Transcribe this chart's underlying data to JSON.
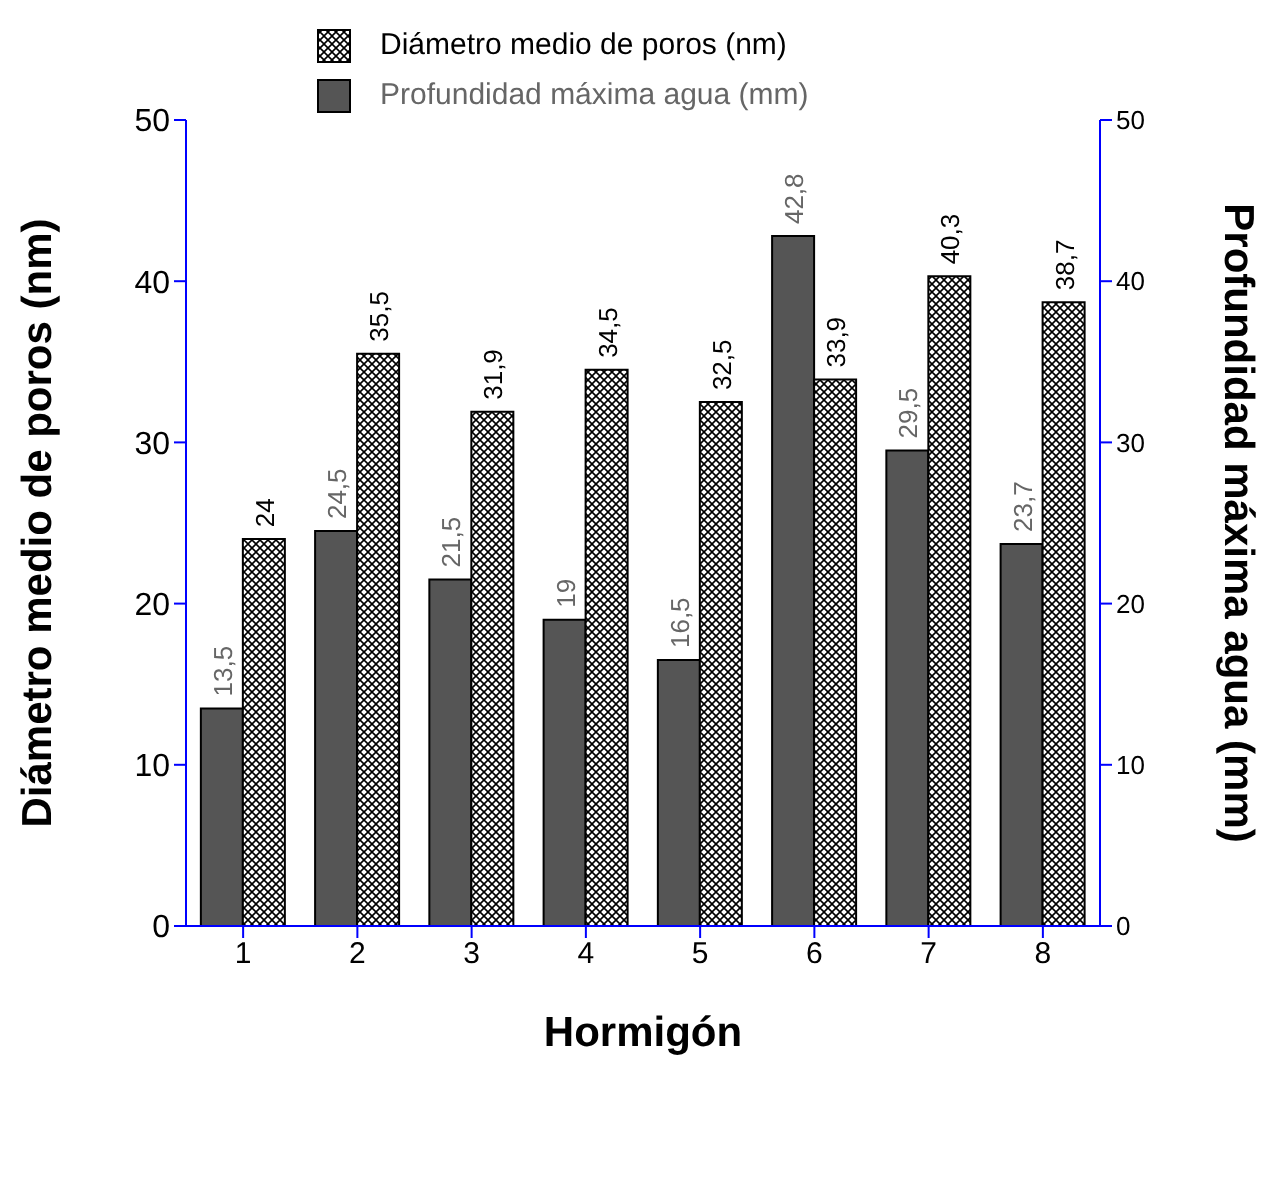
{
  "chart_data": {
    "type": "bar",
    "xlabel": "Hormigón",
    "ylabel": "Diámetro medio de poros (nm)",
    "y2label": "Profundidad máxima agua (mm)",
    "categories": [
      "1",
      "2",
      "3",
      "4",
      "5",
      "6",
      "7",
      "8"
    ],
    "series": [
      {
        "name": "Profundidad máxima agua (mm)",
        "color": "#555555",
        "axis": "y2",
        "values": [
          13.5,
          24.5,
          21.5,
          19,
          16.5,
          42.8,
          29.5,
          23.7
        ],
        "value_labels": [
          "13,5",
          "24,5",
          "21,5",
          "19",
          "16,5",
          "42,8",
          "29,5",
          "23,7"
        ]
      },
      {
        "name": "Diámetro medio de poros (nm)",
        "color": "#000000",
        "values": [
          24,
          35.5,
          31.9,
          34.5,
          32.5,
          33.9,
          40.3,
          38.7
        ],
        "value_labels": [
          "24",
          "35,5",
          "31,9",
          "34,5",
          "32,5",
          "33,9",
          "40,3",
          "38,7"
        ]
      }
    ],
    "ylim": [
      0,
      50
    ],
    "yticks": [
      0,
      10,
      20,
      30,
      40,
      50
    ],
    "y2lim": [
      0,
      50
    ],
    "y2ticks": [
      0,
      10,
      20,
      30,
      40,
      50
    ],
    "legend": "top"
  }
}
